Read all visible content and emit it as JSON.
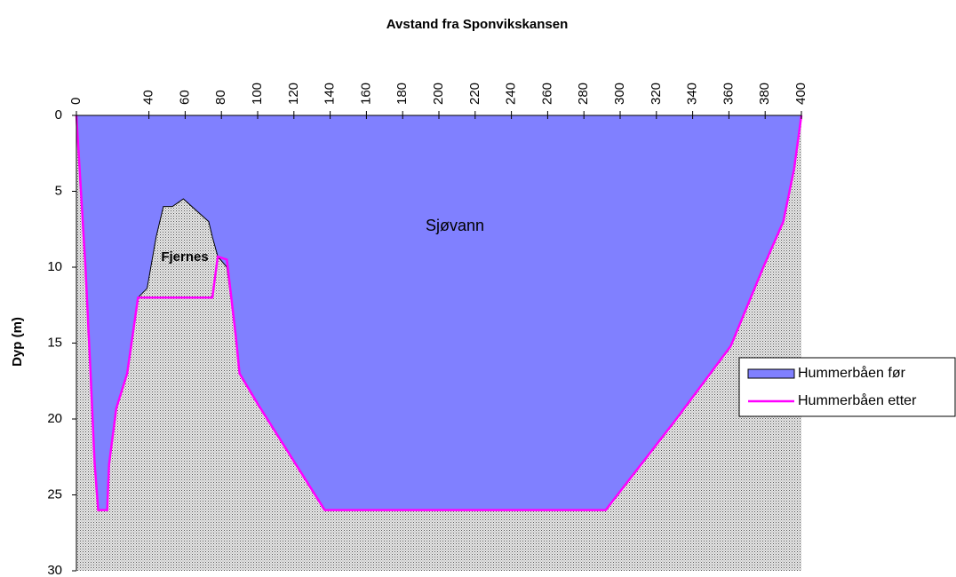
{
  "chart_data": {
    "type": "area",
    "title": "Avstand fra Sponvikskansen",
    "y_label": "Dyp (m)",
    "annotations": [
      "Sjøvann",
      "Fjernes"
    ],
    "x": [
      0,
      5,
      8,
      10,
      12,
      17,
      18,
      22,
      28,
      34,
      39,
      44,
      48,
      53,
      59,
      73,
      75,
      78,
      83,
      88,
      90,
      100,
      137,
      292,
      331,
      361,
      379,
      390,
      396,
      400
    ],
    "series": [
      {
        "name": "Hummerbåen før",
        "kind": "area",
        "color": "#8080ff",
        "values": [
          0,
          10,
          17.5,
          22.8,
          26,
          26,
          23,
          19.3,
          17,
          12,
          11.4,
          8,
          6,
          6,
          5.5,
          7,
          8,
          9.3,
          10,
          14.6,
          17,
          19,
          26,
          26,
          20,
          15.2,
          10,
          7,
          3.5,
          0
        ]
      },
      {
        "name": "Hummerbåen etter",
        "kind": "line",
        "color": "#ff00ff",
        "values": [
          0,
          10,
          17.5,
          22.8,
          26,
          26,
          23,
          19.3,
          17,
          12,
          12,
          12,
          12,
          12,
          12,
          12,
          12,
          9.3,
          9.5,
          14.6,
          17,
          19,
          26,
          26,
          20,
          15.2,
          10,
          7,
          3.5,
          0
        ]
      }
    ],
    "xlim": [
      0,
      400
    ],
    "xticks": [
      0,
      40,
      60,
      80,
      100,
      120,
      140,
      160,
      180,
      200,
      220,
      240,
      260,
      280,
      300,
      320,
      340,
      360,
      380,
      400
    ],
    "ylim": [
      0,
      30
    ],
    "yticks": [
      0,
      5,
      10,
      15,
      20,
      25,
      30
    ],
    "y_inverted": true,
    "x_axis_position": "top",
    "legend": "right"
  }
}
